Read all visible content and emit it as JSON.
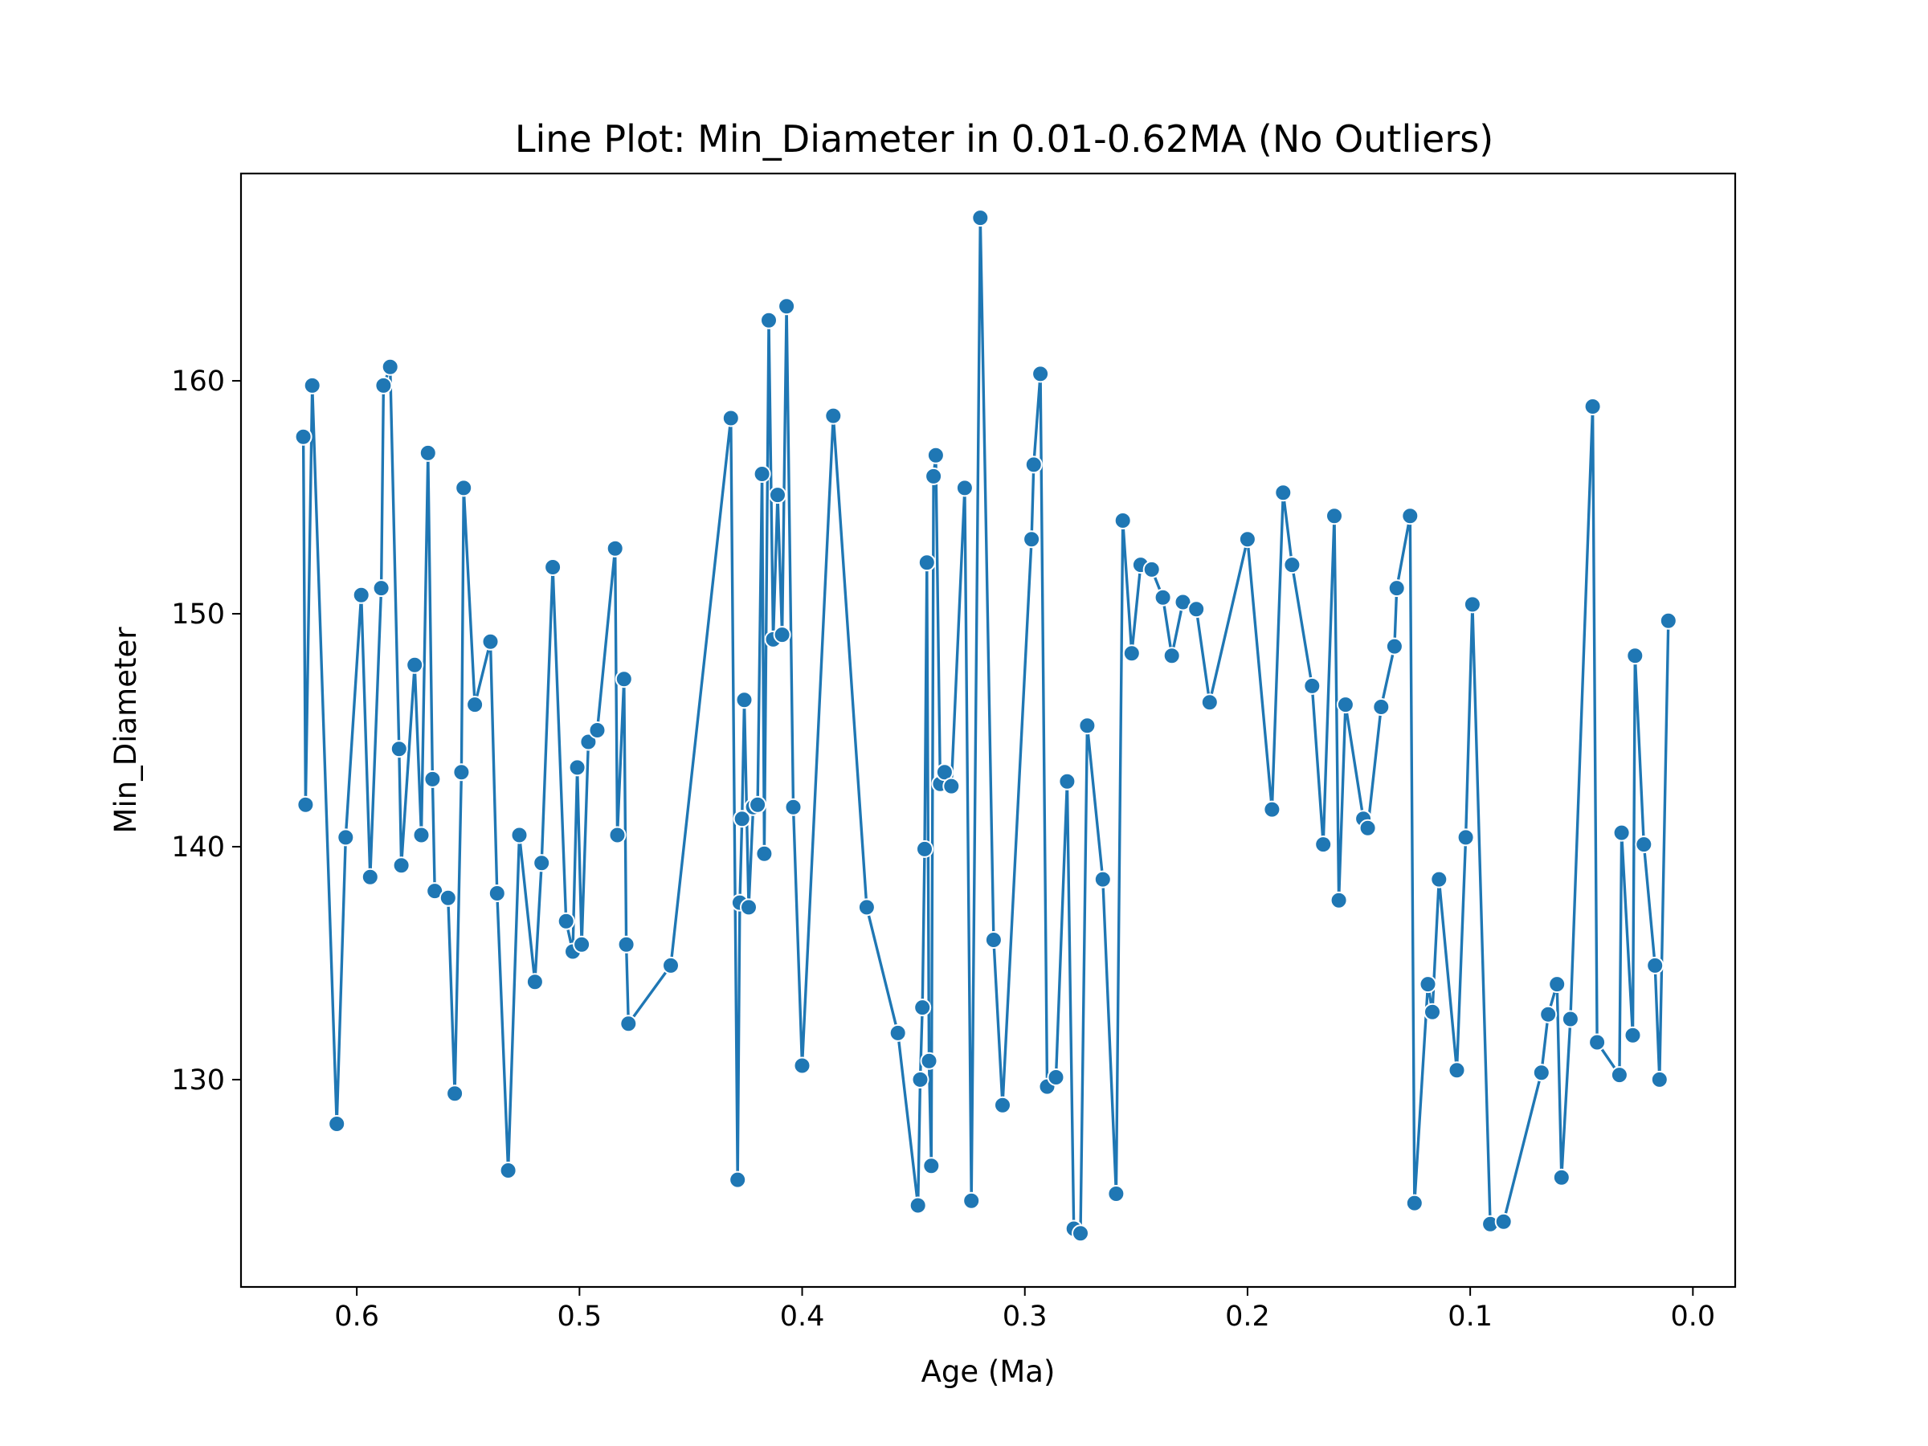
{
  "chart_data": {
    "type": "line",
    "title": "Line Plot: Min_Diameter in 0.01-0.62MA (No Outliers)",
    "xlabel": "Age (Ma)",
    "ylabel": "Min_Diameter",
    "x_inverted": true,
    "xlim": [
      0.652,
      -0.019
    ],
    "ylim": [
      121.1,
      168.9
    ],
    "xticks": [
      0.6,
      0.5,
      0.4,
      0.3,
      0.2,
      0.1,
      0.0
    ],
    "xtick_labels": [
      "0.6",
      "0.5",
      "0.4",
      "0.3",
      "0.2",
      "0.1",
      "0.0"
    ],
    "yticks": [
      130,
      140,
      150,
      160
    ],
    "ytick_labels": [
      "130",
      "140",
      "150",
      "160"
    ],
    "grid": false,
    "series": [
      {
        "color": "#1f77b4",
        "marker": "circle",
        "points": [
          [
            0.624,
            157.6
          ],
          [
            0.623,
            141.8
          ],
          [
            0.62,
            159.8
          ],
          [
            0.609,
            128.1
          ],
          [
            0.605,
            140.4
          ],
          [
            0.598,
            150.8
          ],
          [
            0.594,
            138.7
          ],
          [
            0.589,
            151.1
          ],
          [
            0.588,
            159.8
          ],
          [
            0.585,
            160.6
          ],
          [
            0.581,
            144.2
          ],
          [
            0.58,
            139.2
          ],
          [
            0.574,
            147.8
          ],
          [
            0.571,
            140.5
          ],
          [
            0.568,
            156.9
          ],
          [
            0.566,
            142.9
          ],
          [
            0.565,
            138.1
          ],
          [
            0.559,
            137.8
          ],
          [
            0.556,
            129.4
          ],
          [
            0.553,
            143.2
          ],
          [
            0.552,
            155.4
          ],
          [
            0.547,
            146.1
          ],
          [
            0.54,
            148.8
          ],
          [
            0.537,
            138.0
          ],
          [
            0.532,
            126.1
          ],
          [
            0.527,
            140.5
          ],
          [
            0.52,
            134.2
          ],
          [
            0.517,
            139.3
          ],
          [
            0.512,
            152.0
          ],
          [
            0.506,
            136.8
          ],
          [
            0.503,
            135.5
          ],
          [
            0.501,
            143.4
          ],
          [
            0.499,
            135.8
          ],
          [
            0.496,
            144.5
          ],
          [
            0.492,
            145.0
          ],
          [
            0.484,
            152.8
          ],
          [
            0.483,
            140.5
          ],
          [
            0.48,
            147.2
          ],
          [
            0.479,
            135.8
          ],
          [
            0.478,
            132.4
          ],
          [
            0.459,
            134.9
          ],
          [
            0.432,
            158.4
          ],
          [
            0.429,
            125.7
          ],
          [
            0.428,
            137.6
          ],
          [
            0.427,
            141.2
          ],
          [
            0.426,
            146.3
          ],
          [
            0.424,
            137.4
          ],
          [
            0.422,
            141.7
          ],
          [
            0.42,
            141.8
          ],
          [
            0.418,
            156.0
          ],
          [
            0.417,
            139.7
          ],
          [
            0.415,
            162.6
          ],
          [
            0.413,
            148.9
          ],
          [
            0.411,
            155.1
          ],
          [
            0.409,
            149.1
          ],
          [
            0.407,
            163.2
          ],
          [
            0.404,
            141.7
          ],
          [
            0.4,
            130.6
          ],
          [
            0.386,
            158.5
          ],
          [
            0.371,
            137.4
          ],
          [
            0.357,
            132.0
          ],
          [
            0.348,
            124.6
          ],
          [
            0.347,
            130.0
          ],
          [
            0.346,
            133.1
          ],
          [
            0.345,
            139.9
          ],
          [
            0.344,
            152.2
          ],
          [
            0.343,
            130.8
          ],
          [
            0.342,
            126.3
          ],
          [
            0.341,
            155.9
          ],
          [
            0.34,
            156.8
          ],
          [
            0.338,
            142.7
          ],
          [
            0.336,
            143.2
          ],
          [
            0.333,
            142.6
          ],
          [
            0.327,
            155.4
          ],
          [
            0.324,
            124.8
          ],
          [
            0.32,
            167.0
          ],
          [
            0.314,
            136.0
          ],
          [
            0.31,
            128.9
          ],
          [
            0.297,
            153.2
          ],
          [
            0.296,
            156.4
          ],
          [
            0.293,
            160.3
          ],
          [
            0.29,
            129.7
          ],
          [
            0.286,
            130.1
          ],
          [
            0.281,
            142.8
          ],
          [
            0.278,
            123.6
          ],
          [
            0.275,
            123.4
          ],
          [
            0.272,
            145.2
          ],
          [
            0.265,
            138.6
          ],
          [
            0.259,
            125.1
          ],
          [
            0.256,
            154.0
          ],
          [
            0.252,
            148.3
          ],
          [
            0.248,
            152.1
          ],
          [
            0.243,
            151.9
          ],
          [
            0.238,
            150.7
          ],
          [
            0.234,
            148.2
          ],
          [
            0.229,
            150.5
          ],
          [
            0.223,
            150.2
          ],
          [
            0.217,
            146.2
          ],
          [
            0.2,
            153.2
          ],
          [
            0.189,
            141.6
          ],
          [
            0.184,
            155.2
          ],
          [
            0.18,
            152.1
          ],
          [
            0.171,
            146.9
          ],
          [
            0.166,
            140.1
          ],
          [
            0.161,
            154.2
          ],
          [
            0.159,
            137.7
          ],
          [
            0.156,
            146.1
          ],
          [
            0.148,
            141.2
          ],
          [
            0.146,
            140.8
          ],
          [
            0.14,
            146.0
          ],
          [
            0.134,
            148.6
          ],
          [
            0.133,
            151.1
          ],
          [
            0.127,
            154.2
          ],
          [
            0.125,
            124.7
          ],
          [
            0.119,
            134.1
          ],
          [
            0.117,
            132.9
          ],
          [
            0.114,
            138.6
          ],
          [
            0.106,
            130.4
          ],
          [
            0.102,
            140.4
          ],
          [
            0.099,
            150.4
          ],
          [
            0.091,
            123.8
          ],
          [
            0.085,
            123.9
          ],
          [
            0.068,
            130.3
          ],
          [
            0.065,
            132.8
          ],
          [
            0.061,
            134.1
          ],
          [
            0.059,
            125.8
          ],
          [
            0.055,
            132.6
          ],
          [
            0.045,
            158.9
          ],
          [
            0.043,
            131.6
          ],
          [
            0.033,
            130.2
          ],
          [
            0.032,
            140.6
          ],
          [
            0.027,
            131.9
          ],
          [
            0.026,
            148.2
          ],
          [
            0.022,
            140.1
          ],
          [
            0.017,
            134.9
          ],
          [
            0.015,
            130.0
          ],
          [
            0.011,
            149.7
          ]
        ]
      }
    ]
  }
}
